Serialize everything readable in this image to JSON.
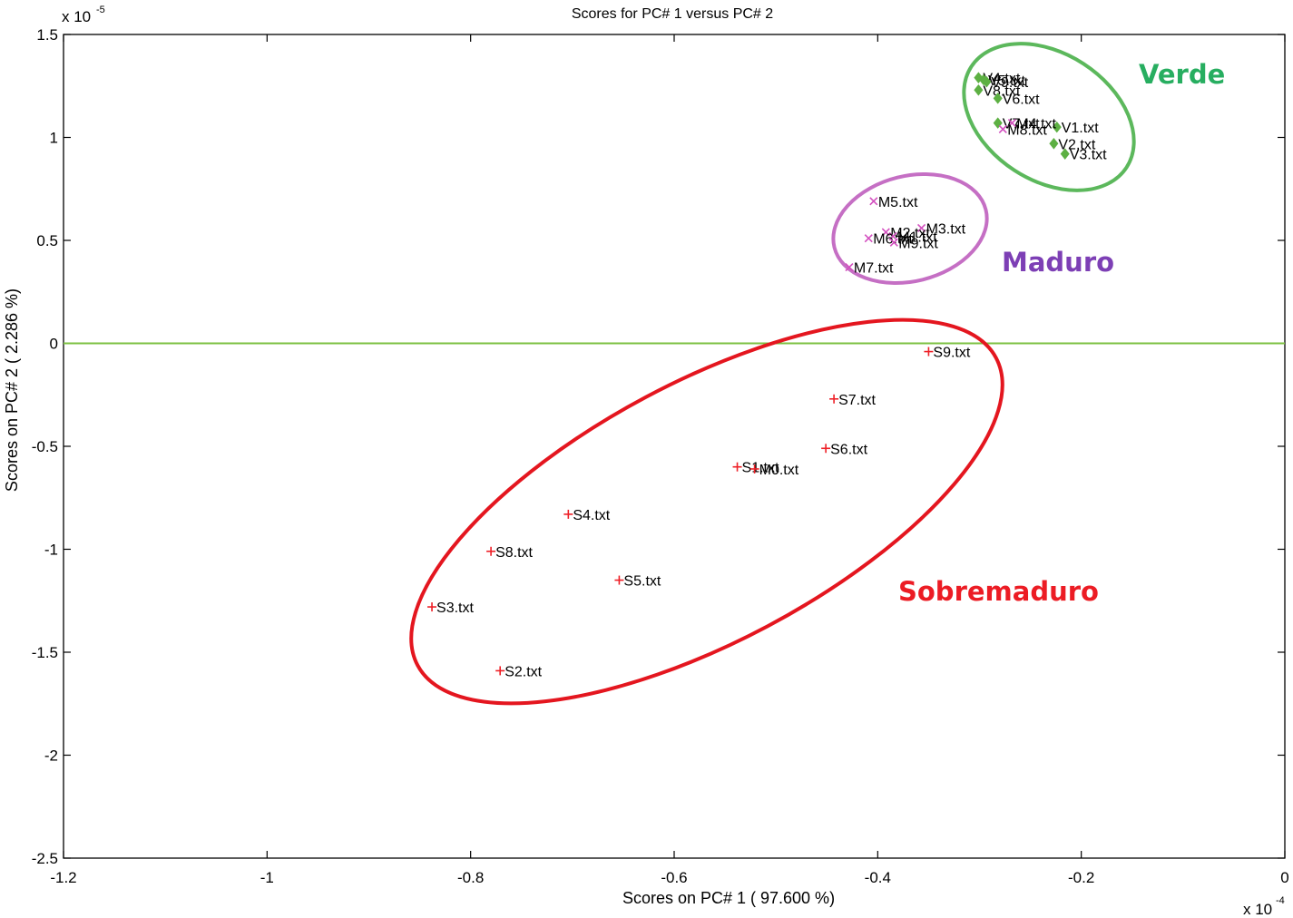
{
  "chart_data": {
    "type": "scatter",
    "title": "Scores for PC# 1 versus PC# 2",
    "xlabel": "Scores on PC# 1 ( 97.600 %)",
    "ylabel": "Scores on PC# 2 ( 2.286 %)",
    "x_multiplier": "x 10",
    "x_exponent": "-4",
    "y_multiplier": "x 10",
    "y_exponent": "-5",
    "xlim": [
      -1.2,
      0
    ],
    "ylim": [
      -2.5,
      1.5
    ],
    "x_ticks": [
      {
        "value": -1.2,
        "label": "-1.2"
      },
      {
        "value": -1.0,
        "label": "-1"
      },
      {
        "value": -0.8,
        "label": "-0.8"
      },
      {
        "value": -0.6,
        "label": "-0.6"
      },
      {
        "value": -0.4,
        "label": "-0.4"
      },
      {
        "value": -0.2,
        "label": "-0.2"
      },
      {
        "value": 0,
        "label": "0"
      }
    ],
    "y_ticks": [
      {
        "value": 1.5,
        "label": "1.5"
      },
      {
        "value": 1.0,
        "label": "1"
      },
      {
        "value": 0.5,
        "label": "0.5"
      },
      {
        "value": 0,
        "label": "0"
      },
      {
        "value": -0.5,
        "label": "-0.5"
      },
      {
        "value": -1.0,
        "label": "-1"
      },
      {
        "value": -1.5,
        "label": "-1.5"
      },
      {
        "value": -2.0,
        "label": "-2"
      },
      {
        "value": -2.5,
        "label": "-2.5"
      }
    ],
    "reference_line_y": 0,
    "grid": false,
    "series": [
      {
        "group": "Verde",
        "marker": "diamond",
        "color": "#5db043",
        "points": [
          {
            "label": "V4.txt",
            "x": -0.301,
            "y": 1.29
          },
          {
            "label": "V5.txt",
            "x": -0.296,
            "y": 1.28
          },
          {
            "label": "V9.txt",
            "x": -0.293,
            "y": 1.27
          },
          {
            "label": "V8.txt",
            "x": -0.301,
            "y": 1.23
          },
          {
            "label": "V6.txt",
            "x": -0.282,
            "y": 1.19
          },
          {
            "label": "V7.txt",
            "x": -0.282,
            "y": 1.07
          },
          {
            "label": "V1.txt",
            "x": -0.224,
            "y": 1.05
          },
          {
            "label": "V2.txt",
            "x": -0.227,
            "y": 0.97
          },
          {
            "label": "V3.txt",
            "x": -0.216,
            "y": 0.92
          }
        ]
      },
      {
        "group": "Maduro",
        "marker": "x",
        "color": "#d34fbf",
        "points": [
          {
            "label": "M4.txt",
            "x": -0.268,
            "y": 1.07
          },
          {
            "label": "M8.txt",
            "x": -0.277,
            "y": 1.04
          },
          {
            "label": "M5.txt",
            "x": -0.404,
            "y": 0.69
          },
          {
            "label": "M3.txt",
            "x": -0.357,
            "y": 0.56
          },
          {
            "label": "M2.txt",
            "x": -0.392,
            "y": 0.54
          },
          {
            "label": "M1.txt",
            "x": -0.385,
            "y": 0.52
          },
          {
            "label": "M6.txt",
            "x": -0.409,
            "y": 0.51
          },
          {
            "label": "M9.txt",
            "x": -0.384,
            "y": 0.49
          },
          {
            "label": "M7.txt",
            "x": -0.428,
            "y": 0.37
          }
        ]
      },
      {
        "group": "Sobremaduro",
        "marker": "plus",
        "color": "#ee2027",
        "points": [
          {
            "label": "S9.txt",
            "x": -0.35,
            "y": -0.04
          },
          {
            "label": "S7.txt",
            "x": -0.443,
            "y": -0.27
          },
          {
            "label": "S6.txt",
            "x": -0.451,
            "y": -0.51
          },
          {
            "label": "S1.txt",
            "x": -0.538,
            "y": -0.6
          },
          {
            "label": "M0.txt",
            "x": -0.521,
            "y": -0.61
          },
          {
            "label": "S4.txt",
            "x": -0.704,
            "y": -0.83
          },
          {
            "label": "S8.txt",
            "x": -0.78,
            "y": -1.01
          },
          {
            "label": "S5.txt",
            "x": -0.654,
            "y": -1.15
          },
          {
            "label": "S3.txt",
            "x": -0.838,
            "y": -1.28
          },
          {
            "label": "S2.txt",
            "x": -0.771,
            "y": -1.59
          }
        ]
      }
    ],
    "annotations": [
      {
        "text": "Verde",
        "color": "#27ae60"
      },
      {
        "text": "Maduro",
        "color": "#7d3fb5"
      },
      {
        "text": "Sobremaduro",
        "color": "#ec1c24"
      }
    ]
  }
}
